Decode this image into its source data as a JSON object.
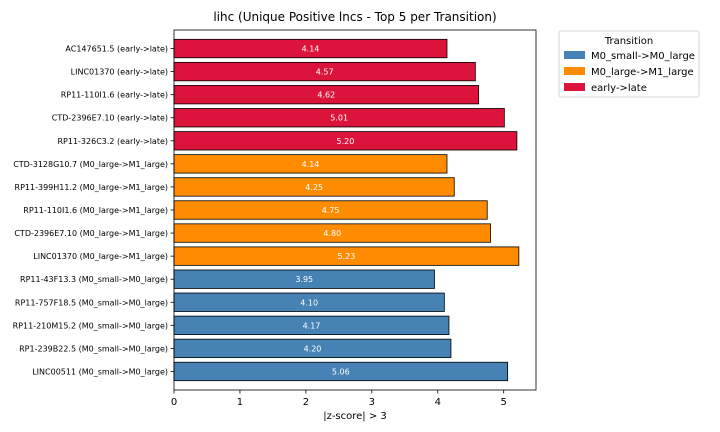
{
  "chart_data": {
    "type": "bar",
    "orientation": "horizontal",
    "title": "lihc (Unique Positive lncs - Top 5 per Transition)",
    "xlabel": "|z-score| > 3",
    "ylabel": "",
    "xlim": [
      0,
      5.49
    ],
    "xticks": [
      0,
      1,
      2,
      3,
      4,
      5
    ],
    "grid": false,
    "legend": {
      "title": "Transition",
      "placement": "upper-right-outside",
      "entries": [
        {
          "name": "M0_small->M0_large",
          "color": "#4682B4"
        },
        {
          "name": "M0_large->M1_large",
          "color": "#FF8C00"
        },
        {
          "name": "early->late",
          "color": "#DC143C"
        }
      ]
    },
    "categories": [
      "AC147651.5 (early->late)",
      "LINC01370 (early->late)",
      "RP11-110I1.6 (early->late)",
      "CTD-2396E7.10 (early->late)",
      "RP11-326C3.2 (early->late)",
      "CTD-3128G10.7 (M0_large->M1_large)",
      "RP11-399H11.2 (M0_large->M1_large)",
      "RP11-110I1.6 (M0_large->M1_large)",
      "CTD-2396E7.10 (M0_large->M1_large)",
      "LINC01370 (M0_large->M1_large)",
      "RP11-43F13.3 (M0_small->M0_large)",
      "RP11-757F18.5 (M0_small->M0_large)",
      "RP11-210M15.2 (M0_small->M0_large)",
      "RP1-239B22.5 (M0_small->M0_large)",
      "LINC00511 (M0_small->M0_large)"
    ],
    "values": [
      4.14,
      4.57,
      4.62,
      5.01,
      5.2,
      4.14,
      4.25,
      4.75,
      4.8,
      5.23,
      3.95,
      4.1,
      4.17,
      4.2,
      5.06
    ],
    "value_labels": [
      "4.14",
      "4.57",
      "4.62",
      "5.01",
      "5.20",
      "4.14",
      "4.25",
      "4.75",
      "4.80",
      "5.23",
      "3.95",
      "4.10",
      "4.17",
      "4.20",
      "5.06"
    ],
    "groups": [
      2,
      2,
      2,
      2,
      2,
      1,
      1,
      1,
      1,
      1,
      0,
      0,
      0,
      0,
      0
    ]
  }
}
